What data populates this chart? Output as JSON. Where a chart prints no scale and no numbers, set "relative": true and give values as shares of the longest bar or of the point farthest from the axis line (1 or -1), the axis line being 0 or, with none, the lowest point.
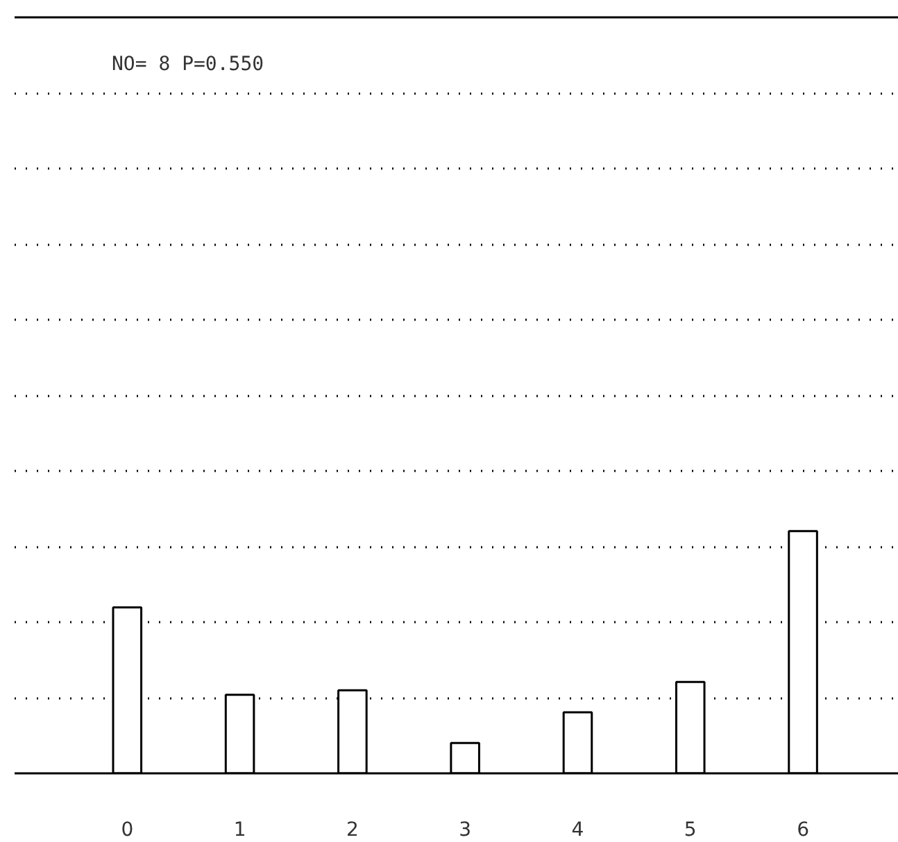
{
  "chart_data": {
    "type": "bar",
    "title": "NO= 8   P=0.550",
    "categories": [
      "0",
      "1",
      "2",
      "3",
      "4",
      "5",
      "6"
    ],
    "values": [
      0.685,
      0.324,
      0.343,
      0.125,
      0.252,
      0.377,
      1
    ],
    "color": "#000000",
    "relative": true,
    "grid": "y"
  }
}
